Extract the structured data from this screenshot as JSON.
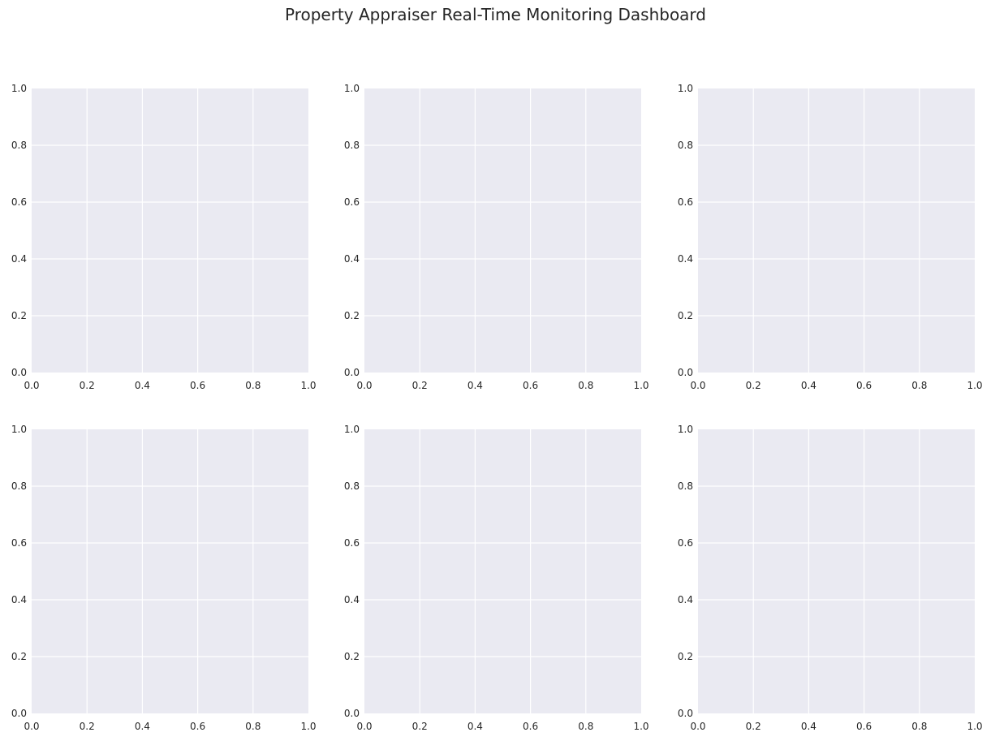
{
  "figure": {
    "title": "Property Appraiser Real-Time Monitoring Dashboard"
  },
  "chart_data": [
    {
      "type": "line",
      "title": "",
      "xlabel": "",
      "ylabel": "",
      "xlim": [
        0,
        1
      ],
      "ylim": [
        0,
        1
      ],
      "xticks": [
        "0.0",
        "0.2",
        "0.4",
        "0.6",
        "0.8",
        "1.0"
      ],
      "yticks": [
        "0.0",
        "0.2",
        "0.4",
        "0.6",
        "0.8",
        "1.0"
      ],
      "grid": true,
      "background": "#EAEAF2",
      "series": []
    },
    {
      "type": "line",
      "title": "",
      "xlabel": "",
      "ylabel": "",
      "xlim": [
        0,
        1
      ],
      "ylim": [
        0,
        1
      ],
      "xticks": [
        "0.0",
        "0.2",
        "0.4",
        "0.6",
        "0.8",
        "1.0"
      ],
      "yticks": [
        "0.0",
        "0.2",
        "0.4",
        "0.6",
        "0.8",
        "1.0"
      ],
      "grid": true,
      "background": "#EAEAF2",
      "series": []
    },
    {
      "type": "line",
      "title": "",
      "xlabel": "",
      "ylabel": "",
      "xlim": [
        0,
        1
      ],
      "ylim": [
        0,
        1
      ],
      "xticks": [
        "0.0",
        "0.2",
        "0.4",
        "0.6",
        "0.8",
        "1.0"
      ],
      "yticks": [
        "0.0",
        "0.2",
        "0.4",
        "0.6",
        "0.8",
        "1.0"
      ],
      "grid": true,
      "background": "#EAEAF2",
      "series": []
    },
    {
      "type": "line",
      "title": "",
      "xlabel": "",
      "ylabel": "",
      "xlim": [
        0,
        1
      ],
      "ylim": [
        0,
        1
      ],
      "xticks": [
        "0.0",
        "0.2",
        "0.4",
        "0.6",
        "0.8",
        "1.0"
      ],
      "yticks": [
        "0.0",
        "0.2",
        "0.4",
        "0.6",
        "0.8",
        "1.0"
      ],
      "grid": true,
      "background": "#EAEAF2",
      "series": []
    },
    {
      "type": "line",
      "title": "",
      "xlabel": "",
      "ylabel": "",
      "xlim": [
        0,
        1
      ],
      "ylim": [
        0,
        1
      ],
      "xticks": [
        "0.0",
        "0.2",
        "0.4",
        "0.6",
        "0.8",
        "1.0"
      ],
      "yticks": [
        "0.0",
        "0.2",
        "0.4",
        "0.6",
        "0.8",
        "1.0"
      ],
      "grid": true,
      "background": "#EAEAF2",
      "series": []
    },
    {
      "type": "line",
      "title": "",
      "xlabel": "",
      "ylabel": "",
      "xlim": [
        0,
        1
      ],
      "ylim": [
        0,
        1
      ],
      "xticks": [
        "0.0",
        "0.2",
        "0.4",
        "0.6",
        "0.8",
        "1.0"
      ],
      "yticks": [
        "0.0",
        "0.2",
        "0.4",
        "0.6",
        "0.8",
        "1.0"
      ],
      "grid": true,
      "background": "#EAEAF2",
      "series": []
    }
  ]
}
